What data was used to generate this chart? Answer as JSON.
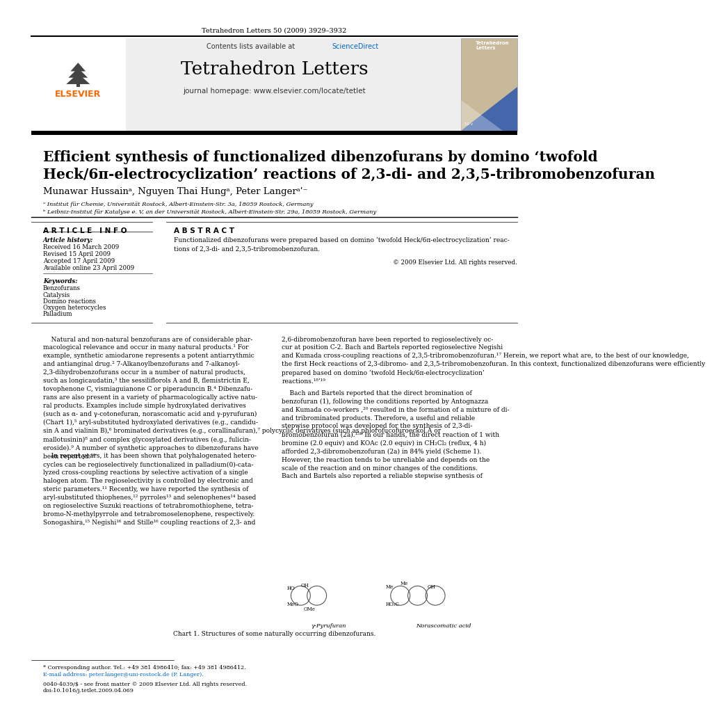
{
  "journal_citation": "Tetrahedron Letters 50 (2009) 3929–3932",
  "contents_line": "Contents lists available at ScienceDirect",
  "sciencedirect_color": "#0066CC",
  "journal_title": "Tetrahedron Letters",
  "journal_homepage": "journal homepage: www.elsevier.com/locate/tetlet",
  "article_title_line1": "Efficient synthesis of functionalized dibenzofurans by domino ‘twofold",
  "article_title_line2": "Heck/6π-electrocyclization’ reactions of 2,3-di- and 2,3,5-tribromobenzofuran",
  "authors": "Munawar Hussainᵃ, Nguyen Thai Hungᵃ, Peter Langerᵃʹ⁻",
  "affil_a": "ᵃ Institut für Chemie, Universität Rostock, Albert-Einstein-Str. 3a, 18059 Rostock, Germany",
  "affil_b": "ᵇ Leibniz-Institut für Katalyse e. V, an der Universität Rostock, Albert-Einstein-Str. 29a, 18059 Rostock, Germany",
  "section_article_info": "A R T I C L E   I N F O",
  "section_abstract": "A B S T R A C T",
  "article_history_label": "Article history:",
  "received": "Received 16 March 2009",
  "revised": "Revised 15 April 2009",
  "accepted": "Accepted 17 April 2009",
  "available": "Available online 23 April 2009",
  "keywords_label": "Keywords:",
  "keywords": [
    "Benzofurans",
    "Catalysis",
    "Domino reactions",
    "Oxygen heterocycles",
    "Palladium"
  ],
  "abstract_text": "Functionalized dibenzofurans were prepared based on domino ‘twofold Heck/6π-electrocyclization’ reac-\ntions of 2,3-di- and 2,3,5-tribromobenzofuran.",
  "copyright": "© 2009 Elsevier Ltd. All rights reserved.",
  "body_col1_para1": "    Natural and non-natural benzofurans are of considerable phar-\nmacological relevance and occur in many natural products.¹ For\nexample, synthetic amiodarone represents a potent antiarrythmic\nand antianginal drug.² 7-Alkanoylbenzofurans and 7-alkanoyl-\n2,3-dihydrobenzofurans occur in a number of natural products,\nsuch as longicaudatin,³ the sessiliflorols A and B, flemistrictin E,\ntovophenone C, vismiaguianone C or piperaduncin B.⁴ Dibenzafu-\nrans are also present in a variety of pharmacologically active natu-\nral products. Examples include simple hydroxylated derivatives\n(such as α- and γ-cotonefuran, norascomatic acid and γ-pyrufuran)\n(Chart 1),⁵ aryl-substituted hydroxylated derivatives (e.g., candidu-\nsin A and vialinin B),⁶ brominated derivatives (e.g., corallinafuran),⁷ polycyclic derivatives (such as phlorofucofuroeckol A or\nmallotusinin)⁸ and complex glycosylated derivatives (e.g., fulicin-\neroside).⁹ A number of synthetic approaches to dibenzofurans have\nbeen reported.¹⁰",
  "body_col1_para2": "    In recent years, it has been shown that polyhalogenated hetero-\ncycles can be regioselectively functionalized in palladium(0)-cata-\nlyzed cross-coupling reactions by selective activation of a single\nhalogen atom. The regioselectivity is controlled by electronic and\nsteric parameters.¹¹ Recently, we have reported the synthesis of\naryl-substituted thiophenes,¹² pyrroles¹³ and selenophenes¹⁴ based\non regioselective Suzuki reactions of tetrabromothiophene, tetra-\nbromo-N-methylpyrrole and tetrabromoselenophene, respectively.\nSonogashira,¹⁵ Negishi¹⁶ and Stille¹⁶ coupling reactions of 2,3- and",
  "body_col2_para1": "2,6-dibromobenzofuran have been reported to regioselectively oc-\ncur at position C-2. Bach and Bartels reported regioselective Negishi\nand Kumada cross-coupling reactions of 2,3,5-tribromobenzofuran.¹⁷ Herein, we report what are, to the best of our knowledge,\nthe first Heck reactions of 2,3-dibromo- and 2,3,5-tribromobenzofuran. In this context, functionalized dibenzofurans were efficiently\nprepared based on domino ‘twofold Heck/6π-electrocyclization’\nreactions.¹⁸’¹⁹",
  "body_col2_para2": "    Bach and Bartels reported that the direct bromination of\nbenzofuran (1), following the conditions reported by Antognazza\nand Kumada co-workers ,²⁰ resulted in the formation of a mixture of di-\nand tribrominated products. Therefore, a useful and reliable\nstepwise protocol was developed for the synthesis of 2,3-di-\nbromobenzofuran (2a).¹⁵ᵇ In our hands, the direct reaction of 1 with\nbromine (2.0 equiv) and KOAc (2.0 equiv) in CH₂Cl₂ (reflux, 4 h)\nafforded 2,3-dibromobenzofuran (2a) in 84% yield (Scheme 1).\nHowever, the reaction tends to be unreliable and depends on the\nscale of the reaction and on minor changes of the conditions.\nBach and Bartels also reported a reliable stepwise synthesis of",
  "chart1_label": "Chart 1. Structures of some naturally occurring dibenzofurans.",
  "gamma_pyrufuran_label": "γ-Pyrufuran",
  "norascomatic_label": "Norascomatic acid",
  "footnote_corresponding": "* Corresponding author. Tel.: +49 381 4986410; fax: +49 381 4986412.",
  "footnote_email": "E-mail address: peter.langer@uni-rostock.de (P. Langer).",
  "footnote_bottom_line1": "0040-4039/$ - see front matter © 2009 Elsevier Ltd. All rights reserved.",
  "footnote_bottom_line2": "doi:10.1016/j.tetlet.2009.04.069",
  "elsevier_orange": "#FF6600",
  "header_bg": "#EEEEEE",
  "black": "#000000",
  "body_font_size": 6.5,
  "title_font_size": 14.5,
  "author_font_size": 9.5,
  "section_font_size": 7.5
}
